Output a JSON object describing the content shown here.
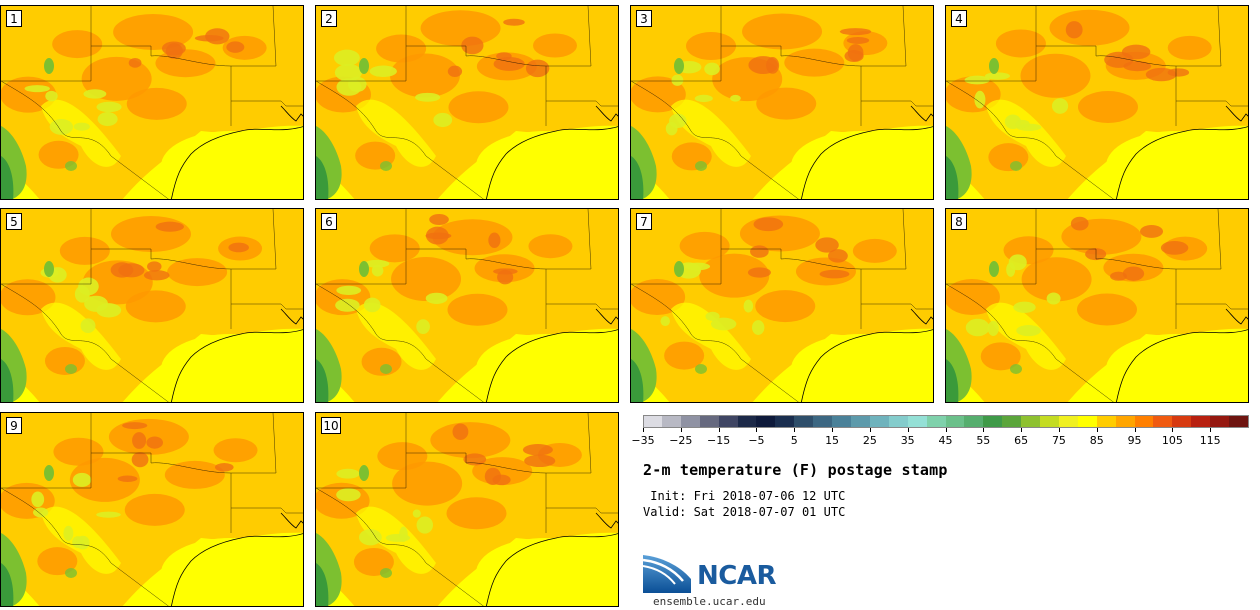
{
  "panels": [
    {
      "label": "1"
    },
    {
      "label": "2"
    },
    {
      "label": "3"
    },
    {
      "label": "4"
    },
    {
      "label": "5"
    },
    {
      "label": "6"
    },
    {
      "label": "7"
    },
    {
      "label": "8"
    },
    {
      "label": "9"
    },
    {
      "label": "10"
    }
  ],
  "colors": {
    "warm_yellow": "#ffff00",
    "gold": "#ffcc00",
    "orange": "#ff9900",
    "dark_orange": "#f07010",
    "yellow_green": "#ddee22",
    "green": "#7cc030",
    "dark_green": "#3a9a3a"
  },
  "colorbar": {
    "colors": [
      "#dcdce3",
      "#b8b9c4",
      "#8f92a3",
      "#66697f",
      "#3f4563",
      "#1c2948",
      "#0e1a3b",
      "#1a2e4f",
      "#2e4e6a",
      "#3c6782",
      "#4a8199",
      "#5d9aab",
      "#6fb3bd",
      "#84cccc",
      "#94e0d6",
      "#7fd1ab",
      "#6bc08a",
      "#56ae6e",
      "#3f9a48",
      "#5ba53b",
      "#8ec130",
      "#c4dc22",
      "#f0f020",
      "#ffff00",
      "#ffcc00",
      "#ffa500",
      "#ff7f00",
      "#f05a10",
      "#d73a10",
      "#b82010",
      "#951810",
      "#6e1410"
    ],
    "tick_labels": [
      "-35",
      "-25",
      "-15",
      "-5",
      "5",
      "15",
      "25",
      "35",
      "45",
      "55",
      "65",
      "75",
      "85",
      "95",
      "105",
      "115"
    ]
  },
  "title": "2-m temperature (F) postage stamp",
  "init_text": " Init: Fri 2018-07-06 12 UTC",
  "valid_text": "Valid: Sat 2018-07-07 01 UTC",
  "logo_text": "NCAR",
  "site_text": "ensemble.ucar.edu"
}
